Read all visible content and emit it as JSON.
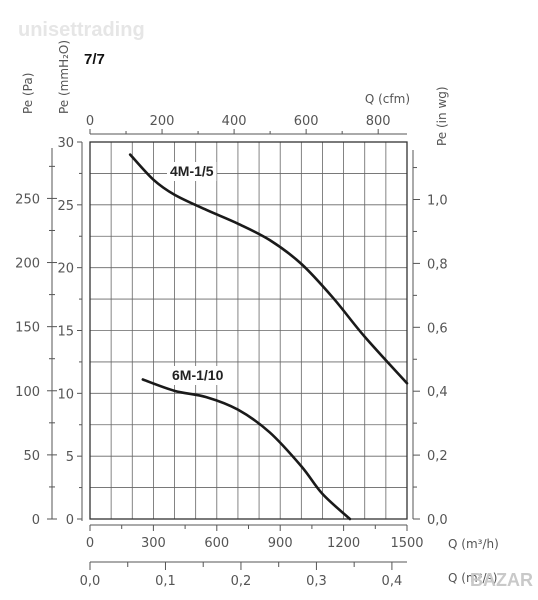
{
  "page_number": "7/7",
  "watermark_top": "unisettrading",
  "watermark_bottom": "BAZAR",
  "chart_data": {
    "type": "line",
    "title": "",
    "series": [
      {
        "name": "4M-1/5",
        "x": [
          190,
          300,
          400,
          550,
          700,
          850,
          1000,
          1150,
          1300,
          1500
        ],
        "values": [
          29,
          27,
          25.8,
          24.6,
          23.5,
          22.2,
          20.3,
          17.6,
          14.5,
          10.8
        ]
      },
      {
        "name": "6M-1/10",
        "x": [
          250,
          400,
          550,
          700,
          850,
          1000,
          1100,
          1230
        ],
        "values": [
          11.1,
          10.2,
          9.7,
          8.7,
          6.9,
          4.2,
          2.0,
          0
        ]
      }
    ],
    "axes": {
      "x_bottom": {
        "label": "Q (m³/h)",
        "min": 0,
        "max": 1500,
        "ticks": [
          "0",
          "300",
          "600",
          "900",
          "1200",
          "1500"
        ]
      },
      "x_bottom2": {
        "label": "Q (m³/s)",
        "min": 0,
        "max": 0.42,
        "ticks": [
          "0,0",
          "0,1",
          "0,2",
          "0,3",
          "0,4"
        ]
      },
      "x_top": {
        "label": "Q (cfm)",
        "min": 0,
        "max": 880,
        "ticks": [
          "0",
          "200",
          "400",
          "600",
          "800"
        ]
      },
      "y_left_pa": {
        "label": "Pe (Pa)",
        "min": 0,
        "max": 294,
        "ticks": [
          "0",
          "50",
          "100",
          "150",
          "200",
          "250"
        ]
      },
      "y_left_mmh2o": {
        "label": "Pe (mmH₂O)",
        "min": 0,
        "max": 30,
        "ticks": [
          "0",
          "5",
          "10",
          "15",
          "20",
          "25",
          "30"
        ]
      },
      "y_right": {
        "label": "Pe (in wg)",
        "min": 0,
        "max": 1.18,
        "ticks": [
          "0,0",
          "0,2",
          "0,4",
          "0,6",
          "0,8",
          "1,0"
        ]
      }
    },
    "grid": true
  }
}
